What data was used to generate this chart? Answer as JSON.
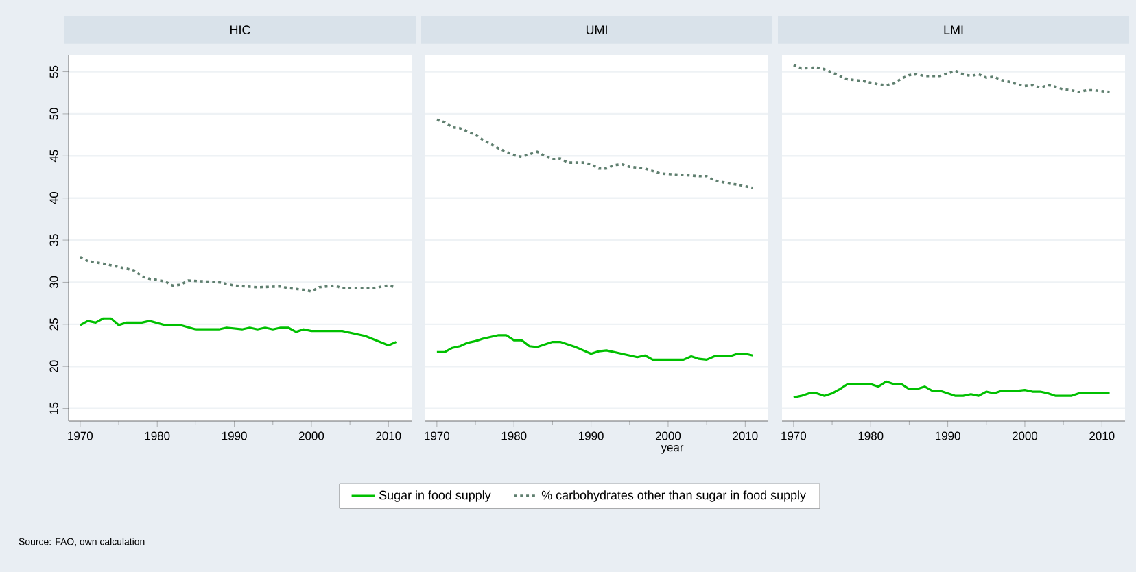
{
  "chart_data": [
    {
      "type": "line",
      "title": "HIC",
      "xlim": [
        1968.5,
        2013
      ],
      "ylim": [
        13.5,
        57
      ],
      "xticks": [
        1970,
        1980,
        1990,
        2000,
        2010
      ],
      "yticks": [
        15,
        20,
        25,
        30,
        35,
        40,
        45,
        50,
        55
      ],
      "grid": "y",
      "annotations": [
        "Source: FAO, own calculation"
      ],
      "series": [
        {
          "color": "#00c000",
          "line_style": "solid",
          "x": [
            1970,
            1971,
            1972,
            1973,
            1974,
            1975,
            1976,
            1978,
            1979,
            1981,
            1983,
            1985,
            1988,
            1989,
            1991,
            1992,
            1993,
            1994,
            1995,
            1996,
            1997,
            1998,
            1999,
            2000,
            2004,
            2007,
            2010,
            2011
          ],
          "values": [
            24.9,
            25.4,
            25.2,
            25.7,
            25.7,
            24.9,
            25.2,
            25.2,
            25.4,
            24.9,
            24.9,
            24.4,
            24.4,
            24.6,
            24.4,
            24.6,
            24.4,
            24.6,
            24.4,
            24.6,
            24.6,
            24.1,
            24.4,
            24.2,
            24.2,
            23.6,
            22.5,
            22.9
          ]
        },
        {
          "color": "#5f7f6f",
          "line_style": "dotted",
          "x": [
            1970,
            1971,
            1973,
            1975,
            1977,
            1978,
            1979,
            1981,
            1982,
            1983,
            1984,
            1988,
            1990,
            1993,
            1996,
            1997,
            1999,
            2000,
            2001,
            2003,
            2004,
            2008,
            2010,
            2011
          ],
          "values": [
            33.0,
            32.5,
            32.2,
            31.8,
            31.4,
            30.7,
            30.4,
            30.1,
            29.6,
            29.7,
            30.2,
            30.0,
            29.6,
            29.4,
            29.5,
            29.3,
            29.1,
            28.9,
            29.4,
            29.6,
            29.3,
            29.3,
            29.6,
            29.4
          ]
        }
      ]
    },
    {
      "type": "line",
      "title": "UMI",
      "xlabel": "year",
      "xlim": [
        1968.5,
        2013
      ],
      "ylim": [
        13.5,
        57
      ],
      "xticks": [
        1970,
        1980,
        1990,
        2000,
        2010
      ],
      "yticks": [
        15,
        20,
        25,
        30,
        35,
        40,
        45,
        50,
        55
      ],
      "grid": "y",
      "tick_labels": "x",
      "legend": "bottom",
      "series": [
        {
          "name": "Sugar in food supply",
          "color": "#00c000",
          "line_style": "solid",
          "x": [
            1970,
            1971,
            1972,
            1973,
            1974,
            1975,
            1976,
            1977,
            1978,
            1979,
            1980,
            1981,
            1982,
            1983,
            1984,
            1985,
            1986,
            1987,
            1988,
            1989,
            1990,
            1991,
            1992,
            1993,
            1994,
            1995,
            1996,
            1997,
            1998,
            2002,
            2003,
            2004,
            2005,
            2006,
            2008,
            2009,
            2010,
            2011
          ],
          "values": [
            21.7,
            21.7,
            22.2,
            22.4,
            22.8,
            23.0,
            23.3,
            23.5,
            23.7,
            23.7,
            23.1,
            23.1,
            22.4,
            22.3,
            22.6,
            22.9,
            22.9,
            22.6,
            22.3,
            21.9,
            21.5,
            21.8,
            21.9,
            21.7,
            21.5,
            21.3,
            21.1,
            21.3,
            20.8,
            20.8,
            21.2,
            20.9,
            20.8,
            21.2,
            21.2,
            21.5,
            21.5,
            21.3
          ]
        },
        {
          "name": "% carbohydrates other than sugar in food supply",
          "color": "#5f7f6f",
          "line_style": "dotted",
          "x": [
            1970,
            1971,
            1972,
            1973,
            1974,
            1975,
            1976,
            1977,
            1978,
            1979,
            1980,
            1981,
            1982,
            1983,
            1984,
            1985,
            1986,
            1987,
            1989,
            1990,
            1991,
            1992,
            1993,
            1994,
            1995,
            1997,
            1998,
            1999,
            2001,
            2004,
            2005,
            2006,
            2008,
            2009,
            2011
          ],
          "values": [
            49.3,
            49.0,
            48.4,
            48.3,
            47.9,
            47.5,
            46.9,
            46.4,
            45.9,
            45.5,
            45.1,
            44.9,
            45.2,
            45.5,
            45.0,
            44.6,
            44.7,
            44.2,
            44.2,
            44.0,
            43.5,
            43.5,
            43.9,
            44.0,
            43.7,
            43.5,
            43.2,
            42.9,
            42.8,
            42.6,
            42.6,
            42.1,
            41.7,
            41.6,
            41.2
          ]
        }
      ]
    },
    {
      "type": "line",
      "title": "LMI",
      "xlim": [
        1968.5,
        2013
      ],
      "ylim": [
        13.5,
        57
      ],
      "xticks": [
        1970,
        1980,
        1990,
        2000,
        2010
      ],
      "yticks": [
        15,
        20,
        25,
        30,
        35,
        40,
        45,
        50,
        55
      ],
      "grid": "y",
      "tick_labels": "x",
      "series": [
        {
          "color": "#00c000",
          "line_style": "solid",
          "x": [
            1970,
            1971,
            1972,
            1973,
            1974,
            1975,
            1976,
            1977,
            1980,
            1981,
            1982,
            1983,
            1984,
            1985,
            1986,
            1987,
            1988,
            1989,
            1990,
            1991,
            1992,
            1993,
            1994,
            1995,
            1996,
            1997,
            1999,
            2000,
            2001,
            2002,
            2003,
            2004,
            2006,
            2007,
            2011
          ],
          "values": [
            16.3,
            16.5,
            16.8,
            16.8,
            16.5,
            16.8,
            17.3,
            17.9,
            17.9,
            17.6,
            18.2,
            17.9,
            17.9,
            17.3,
            17.3,
            17.6,
            17.1,
            17.1,
            16.8,
            16.5,
            16.5,
            16.7,
            16.5,
            17.0,
            16.8,
            17.1,
            17.1,
            17.2,
            17.0,
            17.0,
            16.8,
            16.5,
            16.5,
            16.8,
            16.8
          ]
        },
        {
          "color": "#5f7f6f",
          "line_style": "dotted",
          "x": [
            1970,
            1971,
            1973,
            1974,
            1975,
            1976,
            1977,
            1979,
            1981,
            1982,
            1983,
            1984,
            1985,
            1986,
            1987,
            1989,
            1990,
            1991,
            1992,
            1993,
            1994,
            1995,
            1996,
            1997,
            1998,
            1999,
            2000,
            2001,
            2002,
            2003,
            2004,
            2005,
            2006,
            2007,
            2008,
            2009,
            2011
          ],
          "values": [
            55.8,
            55.4,
            55.5,
            55.3,
            54.9,
            54.5,
            54.1,
            53.9,
            53.5,
            53.4,
            53.6,
            54.2,
            54.6,
            54.7,
            54.5,
            54.5,
            54.8,
            55.1,
            54.7,
            54.5,
            54.7,
            54.3,
            54.4,
            54.0,
            53.8,
            53.5,
            53.3,
            53.4,
            53.1,
            53.4,
            53.2,
            52.9,
            52.8,
            52.6,
            52.8,
            52.8,
            52.6
          ]
        }
      ]
    }
  ]
}
